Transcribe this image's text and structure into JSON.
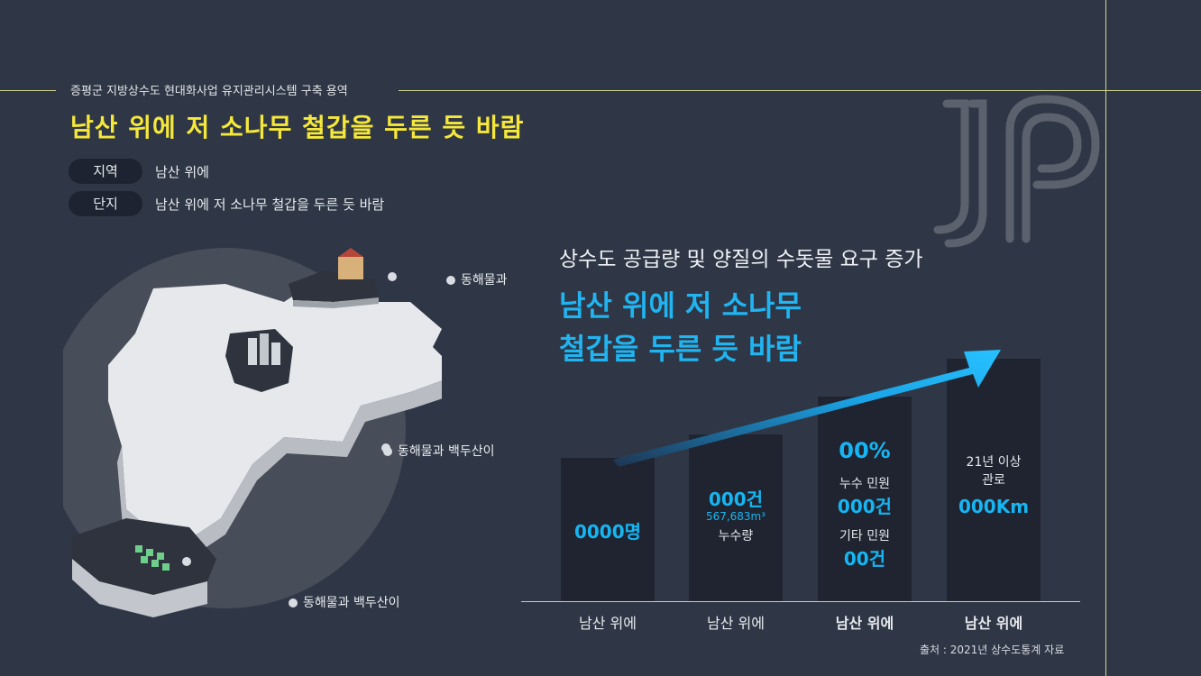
{
  "header": {
    "subtitle": "증평군 지방상수도 현대화사업 유지관리시스템 구축 용역",
    "title": "남산 위에 저 소나무 철갑을 두른 듯 바람"
  },
  "info": {
    "rows": [
      {
        "tag": "지역",
        "value": "남산 위에"
      },
      {
        "tag": "단지",
        "value": "남산 위에 저 소나무 철갑을 두른 듯 바람"
      }
    ]
  },
  "map": {
    "labels": [
      "동해물과",
      "동해물과 백두산이",
      "동해물과 백두산이"
    ]
  },
  "headline": {
    "small": "상수도 공급량 및 양질의 수돗물 요구 증가",
    "big_line1": "남산 위에 저 소나무",
    "big_line2": "철갑을 두른 듯 바람"
  },
  "bars": [
    {
      "label": "남산 위에",
      "main": "0000명"
    },
    {
      "label": "남산 위에",
      "main": "000건",
      "sub1": "567,683m³",
      "sub2": "누수량"
    },
    {
      "label": "남산 위에",
      "pct": "00%",
      "t1": "누수 민원",
      "v1": "000건",
      "t2": "기타 민원",
      "v2": "00건"
    },
    {
      "label": "남산 위에",
      "t1": "21년 이상",
      "t2": "관로",
      "main": "000Km"
    }
  ],
  "chart_data": {
    "type": "bar",
    "categories": [
      "남산 위에",
      "남산 위에",
      "남산 위에",
      "남산 위에"
    ],
    "values": [
      1,
      2,
      3,
      4
    ]
  },
  "source": "출처 : 2021년 상수도통계 자료",
  "colors": {
    "background": "#2f3746",
    "accent_yellow": "#f6e83b",
    "accent_blue": "#15b6f3",
    "bar": "#1f2430"
  }
}
